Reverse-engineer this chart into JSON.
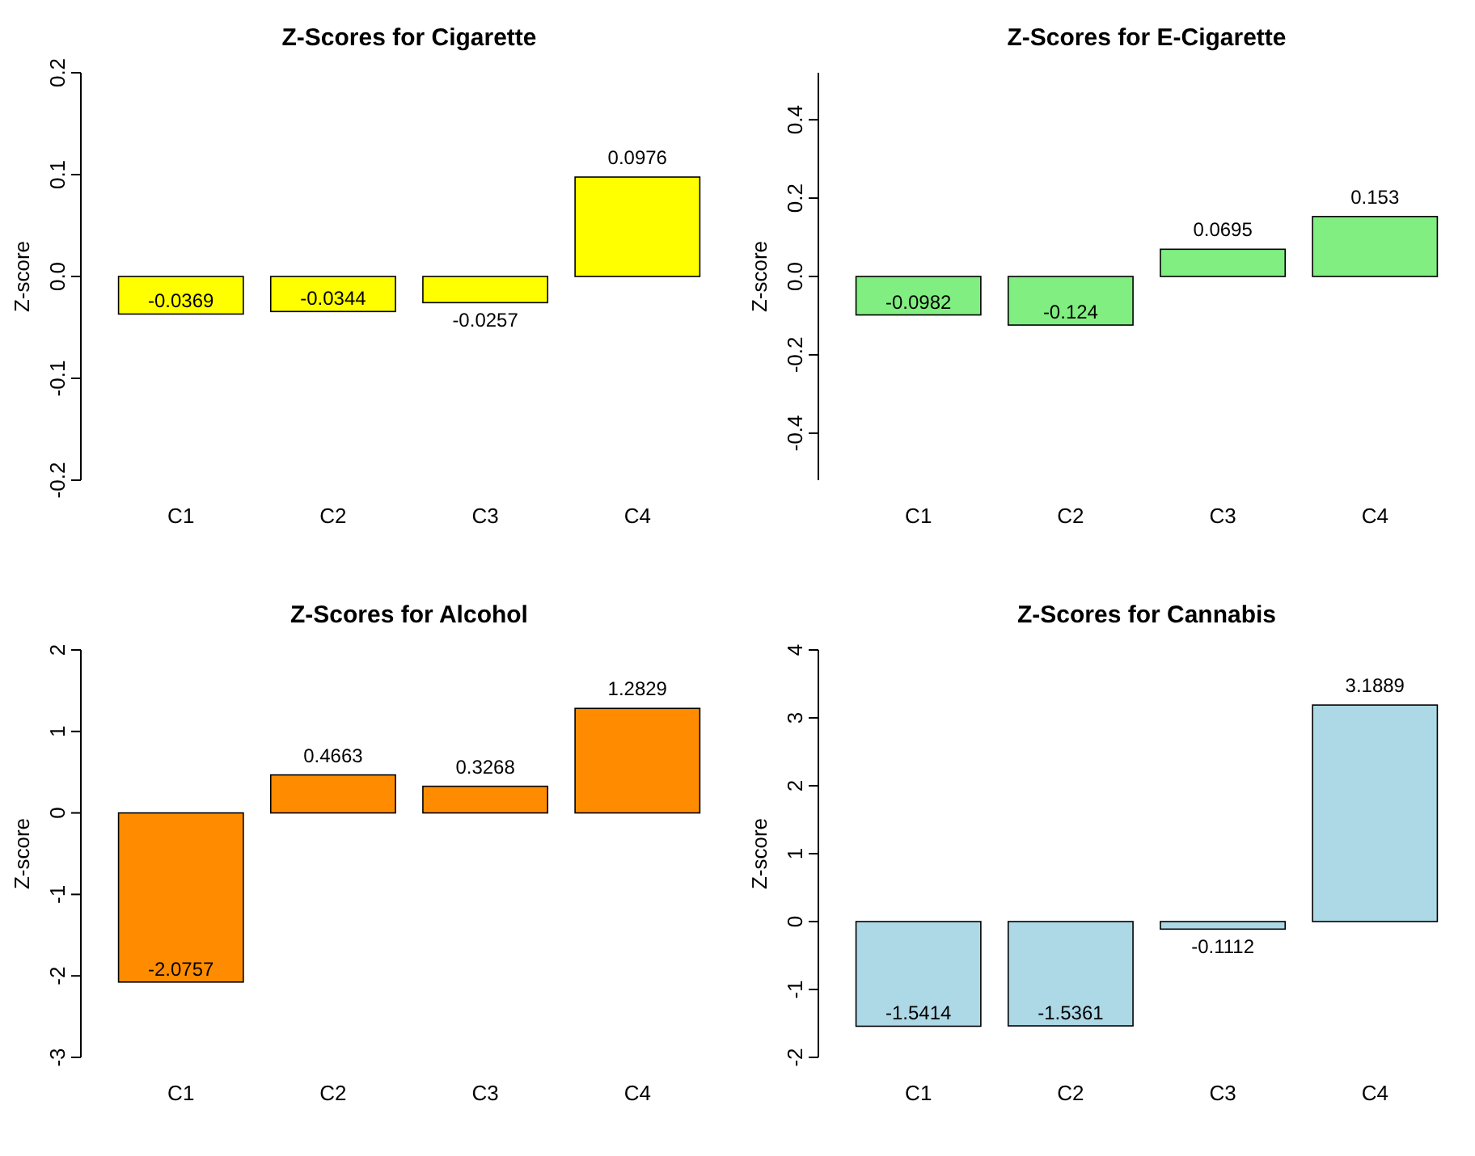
{
  "chart_data": [
    {
      "type": "bar",
      "title": "Z-Scores for Cigarette",
      "ylabel": "Z-score",
      "categories": [
        "C1",
        "C2",
        "C3",
        "C4"
      ],
      "values": [
        -0.0369,
        -0.0344,
        -0.0257,
        0.0976
      ],
      "color": "#ffff00",
      "ylim": [
        -0.2,
        0.2
      ],
      "yticks": [
        -0.2,
        -0.1,
        {
          "value": 0,
          "label": "0.0"
        },
        0.1,
        0.2
      ],
      "data_labels": true,
      "grid": false
    },
    {
      "type": "bar",
      "title": "Z-Scores for E-Cigarette",
      "ylabel": "Z-score",
      "categories": [
        "C1",
        "C2",
        "C3",
        "C4"
      ],
      "values": [
        -0.0982,
        -0.124,
        0.0695,
        0.153
      ],
      "color": "#80ee80",
      "ylim": [
        -0.52,
        0.52
      ],
      "yticks": [
        -0.4,
        -0.2,
        {
          "value": 0,
          "label": "0.0"
        },
        0.2,
        0.4
      ],
      "data_labels": true,
      "grid": false
    },
    {
      "type": "bar",
      "title": "Z-Scores for Alcohol",
      "ylabel": "Z-score",
      "categories": [
        "C1",
        "C2",
        "C3",
        "C4"
      ],
      "values": [
        -2.0757,
        0.4663,
        0.3268,
        1.2829
      ],
      "color": "#ff8c00",
      "ylim": [
        -3,
        2
      ],
      "yticks": [
        -3,
        -2,
        -1,
        0,
        1,
        2
      ],
      "data_labels": true,
      "grid": false
    },
    {
      "type": "bar",
      "title": "Z-Scores for Cannabis",
      "ylabel": "Z-score",
      "categories": [
        "C1",
        "C2",
        "C3",
        "C4"
      ],
      "values": [
        -1.5414,
        -1.5361,
        -0.1112,
        3.1889
      ],
      "color": "#add8e6",
      "ylim": [
        -2,
        4
      ],
      "yticks": [
        -2,
        -1,
        0,
        1,
        2,
        3,
        4
      ],
      "data_labels": true,
      "grid": false
    }
  ]
}
